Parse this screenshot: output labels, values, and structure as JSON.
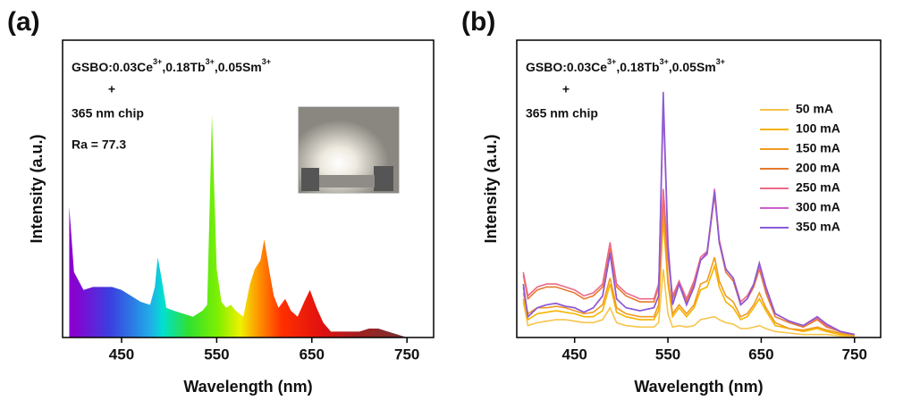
{
  "chart_data": [
    {
      "type": "area",
      "title": "(a)",
      "xlabel": "Wavelength (nm)",
      "ylabel": "Intensity (a.u.)",
      "annotations": {
        "formula": [
          "GSBO:0.03Ce",
          "3+",
          ",0.18Tb",
          "3+",
          ",0.05Sm",
          "3+"
        ],
        "plus": "+",
        "chip": "365 nm chip",
        "ra": "Ra = 77.3"
      },
      "x": [
        395,
        400,
        410,
        420,
        430,
        440,
        450,
        460,
        470,
        480,
        485,
        488,
        492,
        497,
        505,
        515,
        525,
        535,
        540,
        545,
        550,
        555,
        560,
        565,
        570,
        578,
        585,
        590,
        596,
        600,
        605,
        610,
        615,
        622,
        628,
        635,
        642,
        648,
        655,
        662,
        670,
        680,
        690,
        700,
        710,
        720,
        730,
        740,
        750
      ],
      "values": [
        44,
        22,
        16,
        17,
        17,
        17,
        16,
        14,
        12,
        11,
        17,
        27,
        20,
        10,
        9,
        8,
        7,
        9,
        11,
        75,
        23,
        12,
        10,
        11,
        9,
        7,
        18,
        23,
        26,
        33,
        23,
        14,
        10,
        13,
        9,
        7,
        12,
        16,
        10,
        5,
        2,
        2,
        2,
        2,
        3,
        3,
        2,
        1,
        0
      ],
      "xlim": [
        388,
        778
      ],
      "ylim": [
        0,
        100
      ],
      "xticks": [
        450,
        550,
        650,
        750
      ]
    },
    {
      "type": "line",
      "title": "(b)",
      "xlabel": "Wavelength (nm)",
      "ylabel": "Intensity (a.u.)",
      "annotations": {
        "formula": [
          "GSBO:0.03Ce",
          "3+",
          ",0.18Tb",
          "3+",
          ",0.05Sm",
          "3+"
        ],
        "plus": "+",
        "chip": "365 nm chip"
      },
      "legend": "upper right",
      "x": [
        395,
        400,
        410,
        420,
        430,
        440,
        450,
        460,
        470,
        480,
        488,
        495,
        505,
        520,
        535,
        540,
        545,
        550,
        555,
        562,
        570,
        578,
        585,
        592,
        600,
        605,
        612,
        620,
        628,
        635,
        642,
        648,
        655,
        665,
        680,
        695,
        710,
        720,
        735,
        750
      ],
      "series": [
        {
          "name": "50 mA",
          "color": "#f6c44a",
          "values": [
            12,
            4,
            5,
            5.5,
            6,
            6,
            5.5,
            5,
            5,
            6,
            10,
            5,
            4,
            3.5,
            3.5,
            5,
            23,
            8,
            3.5,
            4,
            3.5,
            4,
            6,
            6.5,
            7,
            6,
            5,
            4.5,
            3,
            3,
            3.5,
            4,
            3,
            2,
            1.5,
            1,
            1,
            1,
            0.5,
            0
          ]
        },
        {
          "name": "100 mA",
          "color": "#f5b400",
          "values": [
            13,
            6,
            8,
            8.5,
            9,
            8.5,
            8,
            7,
            7,
            9,
            18,
            8.5,
            7,
            6,
            6,
            9,
            40,
            18,
            7,
            10,
            7,
            10,
            16,
            17,
            24,
            17,
            12,
            10,
            6,
            7,
            10,
            13,
            9,
            4,
            3,
            2,
            3,
            2,
            1,
            0.5
          ]
        },
        {
          "name": "150 mA",
          "color": "#f09a20",
          "values": [
            15,
            8,
            10,
            10,
            10.5,
            10,
            9,
            8,
            8.5,
            11,
            20,
            10,
            8,
            7,
            7,
            11,
            44,
            20,
            8,
            11,
            8,
            11,
            18,
            19,
            27,
            19,
            14,
            12,
            7,
            8,
            11,
            15,
            10,
            5,
            3,
            2.5,
            3.5,
            2.5,
            1.5,
            0.5
          ]
        },
        {
          "name": "200 mA",
          "color": "#e67a2e",
          "values": [
            21,
            13,
            16,
            17,
            17,
            16,
            15,
            13,
            14,
            17,
            30,
            17,
            14,
            12,
            12,
            17,
            48,
            27,
            13,
            18,
            12,
            18,
            26,
            28,
            48,
            32,
            22,
            19,
            11,
            13,
            17,
            23,
            15,
            7,
            5,
            3.5,
            6,
            3.5,
            2,
            1
          ]
        },
        {
          "name": "250 mA",
          "color": "#ec6a88",
          "values": [
            22,
            14,
            17,
            18,
            18,
            17,
            16,
            14,
            15,
            18,
            32,
            18,
            15,
            13,
            13,
            18,
            50,
            28,
            14,
            19,
            13,
            19,
            27,
            29,
            49,
            33,
            23,
            20,
            12,
            14,
            18,
            24,
            16,
            8,
            5.5,
            4,
            6.5,
            4,
            2,
            1
          ]
        },
        {
          "name": "300 mA",
          "color": "#cf5ec8",
          "values": [
            17,
            7,
            10,
            11,
            11.5,
            10.5,
            10,
            8.5,
            10,
            14,
            28,
            13,
            10,
            9,
            10,
            14,
            78,
            31,
            11,
            18,
            11,
            17,
            26,
            28,
            50,
            32,
            23,
            20,
            11,
            13,
            18,
            25,
            17,
            8,
            5.5,
            4,
            7,
            4.5,
            2,
            1
          ]
        },
        {
          "name": "350 mA",
          "color": "#8a5ad6",
          "values": [
            18,
            7,
            10,
            11,
            11.5,
            10.5,
            10,
            8.5,
            10,
            14,
            28.5,
            13,
            10,
            9,
            10,
            14,
            82.6,
            32,
            11,
            18,
            11,
            17,
            26,
            28.5,
            49,
            32,
            23,
            20,
            11,
            13,
            18,
            25,
            17,
            8,
            5.5,
            4,
            7,
            4.5,
            2,
            1
          ]
        }
      ],
      "xlim": [
        388,
        778
      ],
      "ylim": [
        0,
        100
      ],
      "xticks": [
        450,
        550,
        650,
        750
      ]
    }
  ]
}
